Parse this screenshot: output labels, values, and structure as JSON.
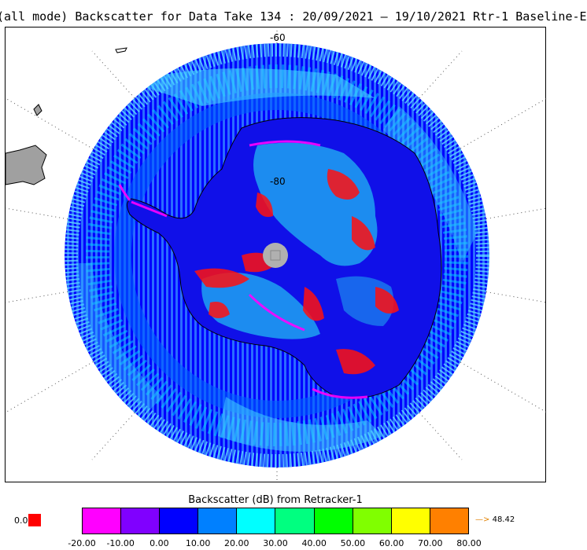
{
  "title": "(all mode) Backscatter for Data Take 134 : 20/09/2021 – 19/10/2021 Rtr-1 Baseline-E",
  "map": {
    "latitude_labels": [
      "-60",
      "-80"
    ],
    "colors": {
      "land": "#a0a0a0",
      "ice_blue": "#0000ff",
      "mid_blue": "#0080ff",
      "cyan": "#00ffff",
      "red": "#ff0000",
      "magenta": "#ff00ff"
    }
  },
  "legend": {
    "title": "Backscatter (dB) from Retracker-1",
    "colors": [
      "#ff00ff",
      "#8000ff",
      "#0000ff",
      "#0080ff",
      "#00ffff",
      "#00ff80",
      "#00ff00",
      "#80ff00",
      "#ffff00",
      "#ff8000"
    ],
    "ticks": [
      "-20.00",
      "-10.00",
      "0.00",
      "10.00",
      "20.00",
      "30.00",
      "40.00",
      "50.00",
      "60.00",
      "70.00",
      "80.00"
    ],
    "low_value": "0.0",
    "high_value_arrow": "—>",
    "high_value": "48.42"
  }
}
